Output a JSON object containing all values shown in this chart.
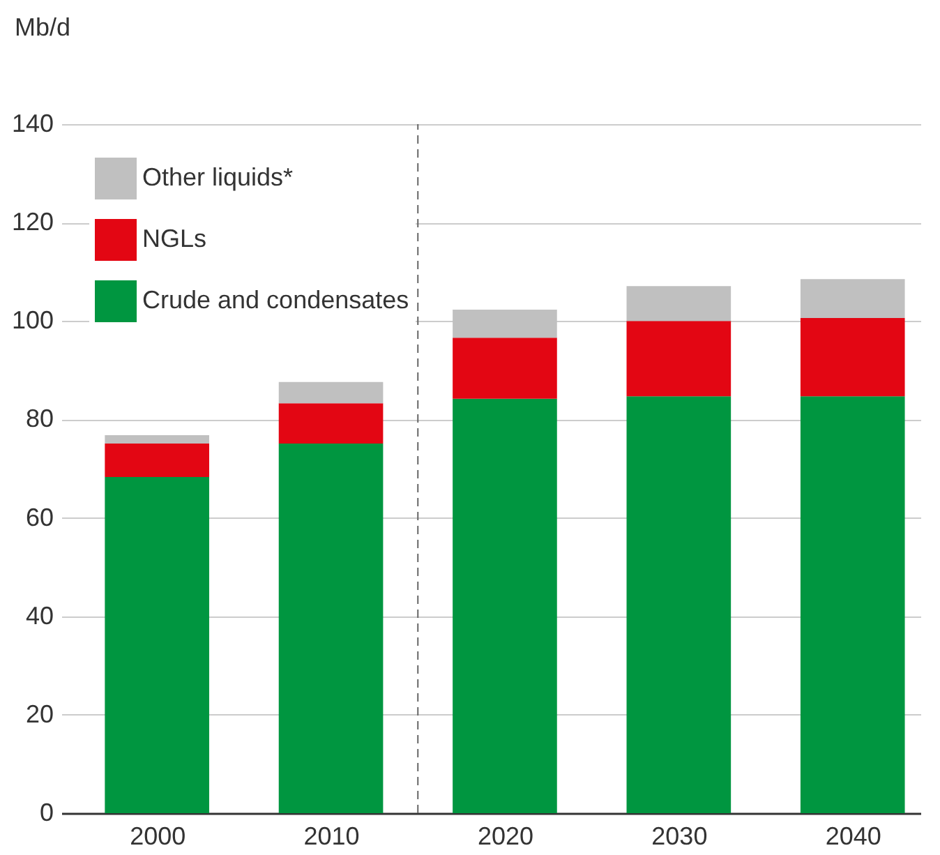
{
  "chart_data": {
    "type": "bar",
    "stacked": true,
    "ylabel": "Mb/d",
    "x": [
      2000,
      2010,
      2020,
      2030,
      2040
    ],
    "xlim": [
      1994.5,
      2043.9
    ],
    "xticks": [
      2000,
      2010,
      2020,
      2030,
      2040
    ],
    "ylim": [
      0,
      140
    ],
    "yticks": [
      0,
      20,
      40,
      60,
      80,
      100,
      120,
      140
    ],
    "series": [
      {
        "name": "Crude and condensates",
        "color": "#009640",
        "values": [
          68.3,
          75.1,
          84.2,
          84.7,
          84.7
        ]
      },
      {
        "name": "NGLs",
        "color": "#e30613",
        "values": [
          6.8,
          8.2,
          12.4,
          15.3,
          15.9
        ]
      },
      {
        "name": "Other liquids*",
        "color": "#c0c0c0",
        "values": [
          1.7,
          4.3,
          5.7,
          7.1,
          7.9
        ]
      }
    ],
    "ref_lines": [
      {
        "axis": "x",
        "value": 2015,
        "line_style": "dashed",
        "color": "#666666"
      }
    ],
    "grid": "y",
    "legend": "top left"
  }
}
